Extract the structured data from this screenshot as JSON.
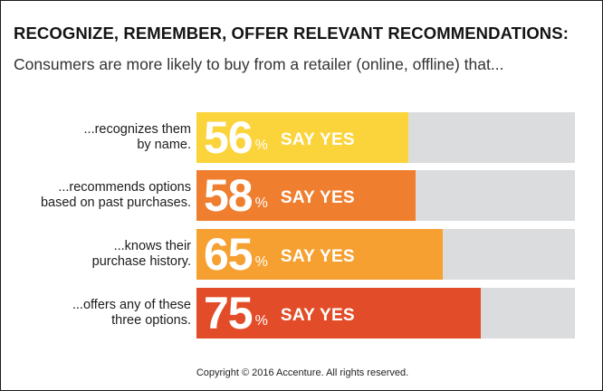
{
  "title": "RECOGNIZE, REMEMBER, OFFER RELEVANT RECOMMENDATIONS:",
  "subtitle": "Consumers are more likely to buy from a retailer (online, offline) that...",
  "copyright": "Copyright © 2016 Accenture. All rights reserved.",
  "colors": {
    "track": "#dadcdd",
    "bar_56": "#fbd33b",
    "bar_58": "#ef7e2f",
    "bar_65": "#f5a031",
    "bar_75": "#e34c28"
  },
  "chart_data": {
    "type": "bar",
    "orientation": "horizontal",
    "title": "RECOGNIZE, REMEMBER, OFFER RELEVANT RECOMMENDATIONS:",
    "subtitle": "Consumers are more likely to buy from a retailer (online, offline) that...",
    "xlim": [
      0,
      100
    ],
    "unit": "%",
    "value_suffix": "SAY YES",
    "categories": [
      "...recognizes them by name.",
      "...recommends options based on past purchases.",
      "...knows their purchase history.",
      "...offers any of these three options."
    ],
    "bars": [
      {
        "label_lines": [
          "...recognizes them",
          "by name."
        ],
        "value": 56,
        "display": "56",
        "unit": "%",
        "suffix": "SAY YES",
        "color": "#fbd33b"
      },
      {
        "label_lines": [
          "...recommends options",
          "based on past purchases."
        ],
        "value": 58,
        "display": "58",
        "unit": "%",
        "suffix": "SAY YES",
        "color": "#ef7e2f"
      },
      {
        "label_lines": [
          "...knows their",
          "purchase history."
        ],
        "value": 65,
        "display": "65",
        "unit": "%",
        "suffix": "SAY YES",
        "color": "#f5a031"
      },
      {
        "label_lines": [
          "...offers any of these",
          "three options."
        ],
        "value": 75,
        "display": "75",
        "unit": "%",
        "suffix": "SAY YES",
        "color": "#e34c28"
      }
    ]
  }
}
